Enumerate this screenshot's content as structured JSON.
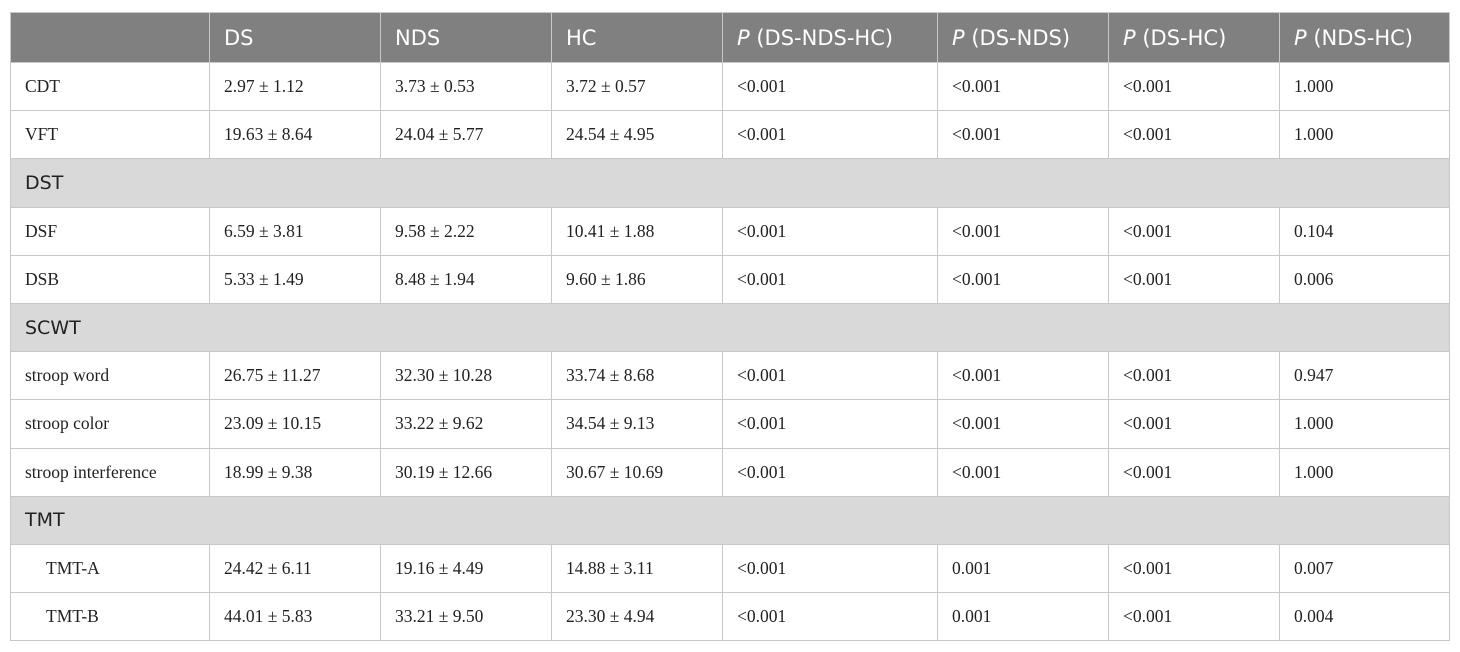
{
  "table": {
    "header": [
      {
        "text": ""
      },
      {
        "text": "DS"
      },
      {
        "text": "NDS"
      },
      {
        "text": "HC"
      },
      {
        "italic": "P",
        "text": "(DS-NDS-HC)"
      },
      {
        "italic": "P",
        "text": "(DS-NDS)"
      },
      {
        "italic": "P",
        "text": "(DS-HC)"
      },
      {
        "italic": "P",
        "text": "(NDS-HC)"
      }
    ],
    "rows": [
      {
        "cells": [
          "CDT",
          "2.97 ± 1.12",
          "3.73 ± 0.53",
          "3.72 ± 0.57",
          "<0.001",
          "<0.001",
          "<0.001",
          "1.000"
        ]
      },
      {
        "cells": [
          "VFT",
          "19.63 ± 8.64",
          "24.04 ± 5.77",
          "24.54 ± 4.95",
          "<0.001",
          "<0.001",
          "<0.001",
          "1.000"
        ]
      },
      {
        "section": "DST"
      },
      {
        "cells": [
          "DSF",
          "6.59 ± 3.81",
          "9.58 ± 2.22",
          "10.41 ± 1.88",
          "<0.001",
          "<0.001",
          "<0.001",
          "0.104"
        ]
      },
      {
        "cells": [
          "DSB",
          "5.33 ± 1.49",
          "8.48 ± 1.94",
          "9.60 ± 1.86",
          "<0.001",
          "<0.001",
          "<0.001",
          "0.006"
        ]
      },
      {
        "section": "SCWT"
      },
      {
        "cells": [
          "stroop word",
          "26.75 ± 11.27",
          "32.30 ± 10.28",
          "33.74 ± 8.68",
          "<0.001",
          "<0.001",
          "<0.001",
          "0.947"
        ]
      },
      {
        "cells": [
          "stroop color",
          "23.09 ± 10.15",
          "33.22 ± 9.62",
          "34.54 ± 9.13",
          "<0.001",
          "<0.001",
          "<0.001",
          "1.000"
        ]
      },
      {
        "cells": [
          "stroop interference",
          "18.99 ± 9.38",
          "30.19 ± 12.66",
          "30.67 ± 10.69",
          "<0.001",
          "<0.001",
          "<0.001",
          "1.000"
        ]
      },
      {
        "section": "TMT"
      },
      {
        "cells": [
          "TMT-A",
          "24.42 ± 6.11",
          "19.16 ± 4.49",
          "14.88 ± 3.11",
          "<0.001",
          "0.001",
          "<0.001",
          "0.007"
        ]
      },
      {
        "cells": [
          "TMT-B",
          "44.01 ± 5.83",
          "33.21 ± 9.50",
          "23.30 ± 4.94",
          "<0.001",
          "0.001",
          "<0.001",
          "0.004"
        ]
      }
    ]
  }
}
